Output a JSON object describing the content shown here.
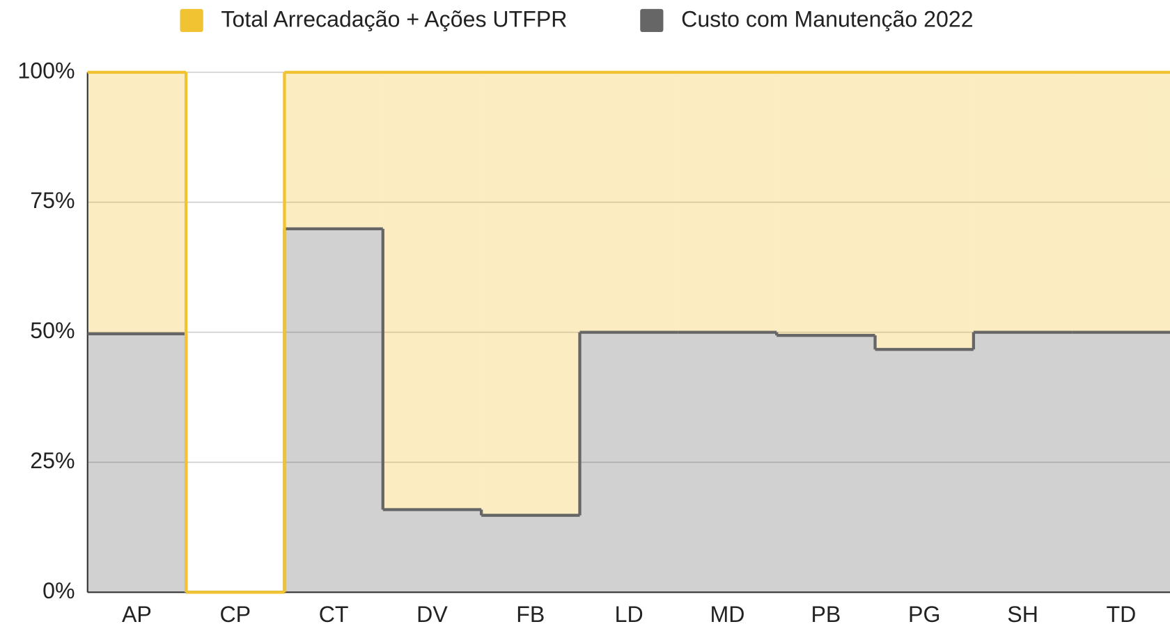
{
  "chart_data": {
    "type": "stepped-area-stacked",
    "categories": [
      "AP",
      "CP",
      "CT",
      "DV",
      "FB",
      "LD",
      "MD",
      "PB",
      "PG",
      "SH",
      "TD"
    ],
    "series": [
      {
        "name": "Total Arrecadação + Ações UTFPR",
        "color": "#f1c232",
        "values": [
          50.3,
          0,
          30.1,
          84.1,
          85.2,
          50,
          50,
          50.6,
          53.3,
          50,
          50
        ]
      },
      {
        "name": "Custo com Manutenção 2022",
        "color": "#666666",
        "values": [
          49.7,
          0,
          69.9,
          15.9,
          14.8,
          50,
          50,
          49.4,
          46.7,
          50,
          50
        ]
      }
    ],
    "ylim": [
      0,
      100
    ],
    "yticks": [
      {
        "value": 0,
        "label": "0%"
      },
      {
        "value": 25,
        "label": "25%"
      },
      {
        "value": 50,
        "label": "50%"
      },
      {
        "value": 75,
        "label": "75%"
      },
      {
        "value": 100,
        "label": "100%"
      }
    ],
    "grid": true,
    "legend": "top"
  }
}
